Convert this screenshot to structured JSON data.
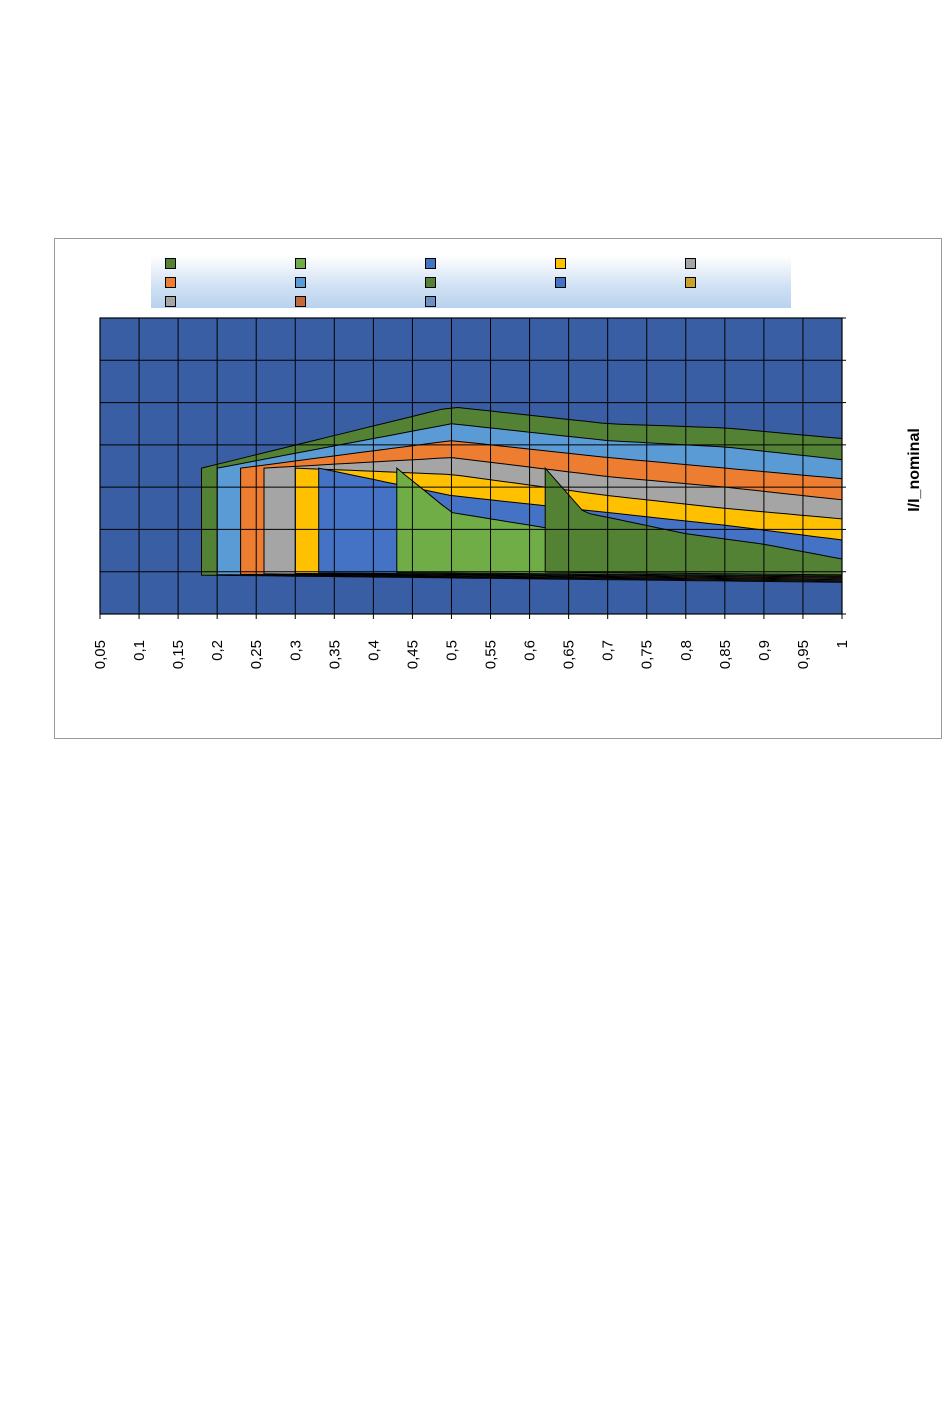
{
  "chart_data": {
    "type": "contour",
    "orientation": "rotated-90",
    "xlabel": "I/I_nominal",
    "ylabel": "",
    "x_ticks": [
      "0,05",
      "0,1",
      "0,15",
      "0,2",
      "0,25",
      "0,3",
      "0,35",
      "0,4",
      "0,45",
      "0,5",
      "0,55",
      "0,6",
      "0,65",
      "0,7",
      "0,75",
      "0,8",
      "0,85",
      "0,9",
      "0,95",
      "1"
    ],
    "xlim": [
      0.05,
      1
    ],
    "y_rows": 7,
    "grid": true,
    "legend_placement": "top",
    "bands": [
      {
        "color": "#548235",
        "upper_edge": [
          [
            0.62,
            3.05
          ],
          [
            0.67,
            2.0
          ],
          [
            0.8,
            1.5
          ],
          [
            0.9,
            1.25
          ],
          [
            1,
            0.9
          ]
        ]
      },
      {
        "color": "#70ad47",
        "upper_edge": [
          [
            0.43,
            3.05
          ],
          [
            0.5,
            2.0
          ],
          [
            0.7,
            1.4
          ],
          [
            0.85,
            1.15
          ],
          [
            1,
            0.6
          ]
        ]
      },
      {
        "color": "#4472c4",
        "upper_edge": [
          [
            0.33,
            3.05
          ],
          [
            0.5,
            2.4
          ],
          [
            0.7,
            2.0
          ],
          [
            0.85,
            1.7
          ],
          [
            1,
            1.35
          ]
        ]
      },
      {
        "color": "#ffc000",
        "upper_edge": [
          [
            0.3,
            3.05
          ],
          [
            0.5,
            2.9
          ],
          [
            0.7,
            2.4
          ],
          [
            0.85,
            2.1
          ],
          [
            1,
            1.85
          ]
        ]
      },
      {
        "color": "#a5a5a5",
        "upper_edge": [
          [
            0.26,
            3.05
          ],
          [
            0.5,
            3.3
          ],
          [
            0.7,
            2.85
          ],
          [
            0.85,
            2.6
          ],
          [
            1,
            2.3
          ]
        ]
      },
      {
        "color": "#ed7d31",
        "upper_edge": [
          [
            0.23,
            3.05
          ],
          [
            0.5,
            3.7
          ],
          [
            0.7,
            3.3
          ],
          [
            0.85,
            3.05
          ],
          [
            1,
            2.8
          ]
        ]
      },
      {
        "color": "#5b9bd5",
        "upper_edge": [
          [
            0.2,
            3.05
          ],
          [
            0.5,
            4.1
          ],
          [
            0.7,
            3.7
          ],
          [
            0.85,
            3.55
          ],
          [
            1,
            3.25
          ]
        ]
      },
      {
        "color": "#548235",
        "upper_edge": [
          [
            0.18,
            3.05
          ],
          [
            0.5,
            4.5
          ],
          [
            0.7,
            4.1
          ],
          [
            0.85,
            4.0
          ],
          [
            1,
            3.75
          ]
        ]
      }
    ],
    "legend_swatches": [
      "#548235",
      "#70ad47",
      "#4472c4",
      "#ffc000",
      "#a5a5a5",
      "#ed7d31",
      "#5b9bd5",
      "#548235",
      "#4472c4",
      "#c9a227",
      "#a5a5a5",
      "#c5683a",
      "#6a8fc0"
    ]
  }
}
